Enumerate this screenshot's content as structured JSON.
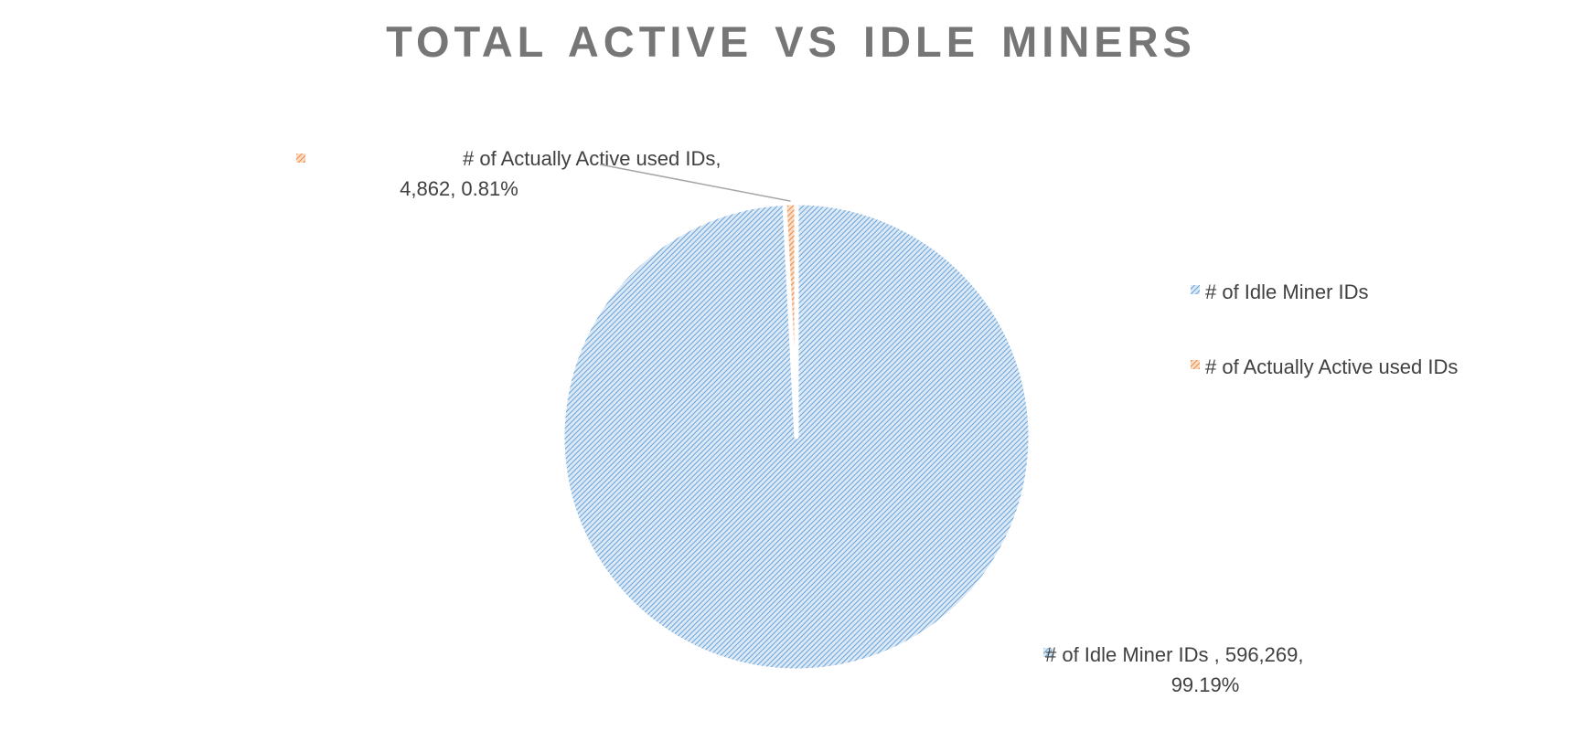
{
  "chart_data": {
    "type": "pie",
    "title": "TOTAL ACTIVE VS IDLE  MINERS",
    "legend_position": "right",
    "start_angle_deg": 0,
    "series": [
      {
        "name": "# of Idle Miner IDs",
        "value": 596269,
        "percent": 99.19,
        "color": "#5B9BD5",
        "data_label": [
          "# of Idle Miner IDs , 596,269,",
          "99.19%"
        ]
      },
      {
        "name": "# of Actually Active used IDs",
        "value": 4862,
        "percent": 0.81,
        "color": "#ED7D31",
        "data_label": [
          "# of Actually Active used IDs,",
          "4,862, 0.81%"
        ]
      }
    ],
    "legend": [
      "# of Idle Miner IDs",
      "# of Actually Active used IDs"
    ]
  }
}
